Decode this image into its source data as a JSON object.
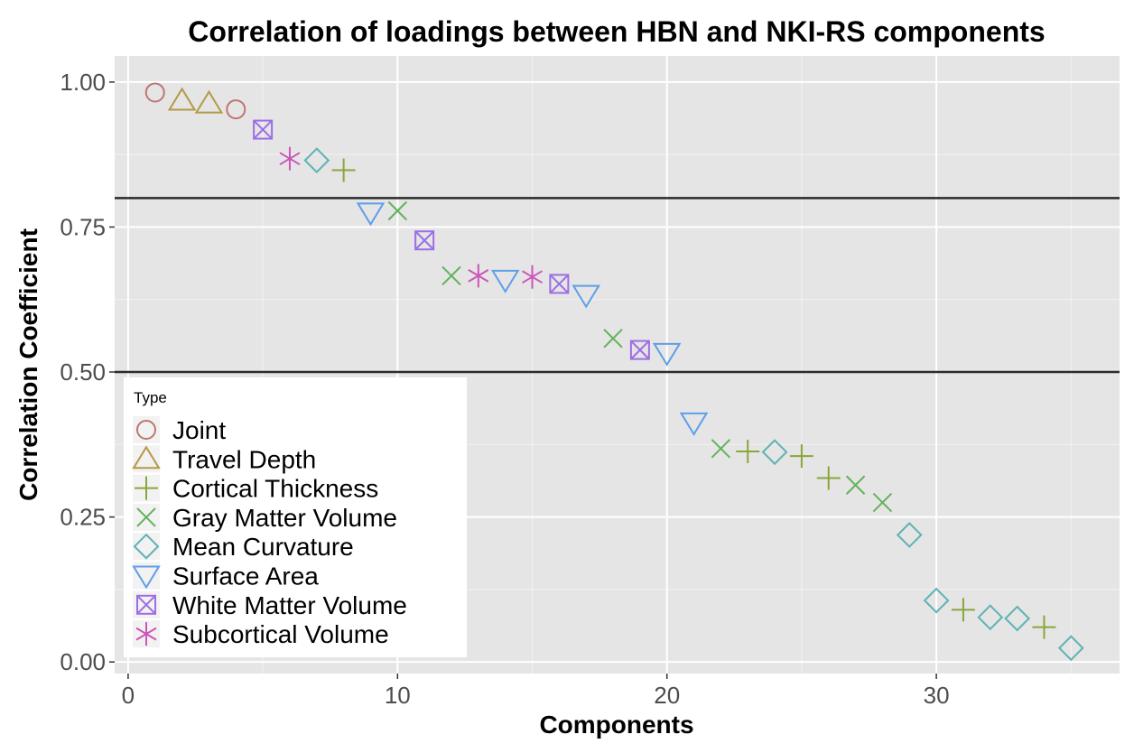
{
  "chart_data": {
    "type": "scatter",
    "title": "Correlation of loadings between HBN and NKI-RS components",
    "xlabel": "Components",
    "ylabel": "Correlation Coefficient",
    "xlim": [
      -0.5,
      36.8
    ],
    "ylim": [
      -0.02,
      1.045
    ],
    "x_ticks": [
      0,
      10,
      20,
      30
    ],
    "x_tick_labels": [
      "0",
      "10",
      "20",
      "30"
    ],
    "y_ticks": [
      0.0,
      0.25,
      0.5,
      0.75,
      1.0
    ],
    "y_tick_labels": [
      "0.00",
      "0.25",
      "0.50",
      "0.75",
      "1.00"
    ],
    "grid": true,
    "reference_lines": [
      0.8,
      0.5
    ],
    "legend": {
      "title": "Type",
      "position": "bottom-left",
      "entries": [
        {
          "label": "Joint",
          "shape": "circle",
          "color": "#c07672"
        },
        {
          "label": "Travel Depth",
          "shape": "triangle",
          "color": "#b39a45"
        },
        {
          "label": "Cortical Thickness",
          "shape": "plus",
          "color": "#8aa53c"
        },
        {
          "label": "Gray Matter Volume",
          "shape": "cross",
          "color": "#63b25e"
        },
        {
          "label": "Mean Curvature",
          "shape": "diamond",
          "color": "#5fb2b3"
        },
        {
          "label": "Surface Area",
          "shape": "triangle-down",
          "color": "#5f9ee9"
        },
        {
          "label": "White Matter Volume",
          "shape": "square-cross",
          "color": "#9c6ee5"
        },
        {
          "label": "Subcortical Volume",
          "shape": "asterisk",
          "color": "#cc55b9"
        }
      ]
    },
    "points": [
      {
        "x": 1,
        "y": 0.982,
        "type": "Joint"
      },
      {
        "x": 2,
        "y": 0.968,
        "type": "Travel Depth"
      },
      {
        "x": 3,
        "y": 0.963,
        "type": "Travel Depth"
      },
      {
        "x": 4,
        "y": 0.953,
        "type": "Joint"
      },
      {
        "x": 5,
        "y": 0.918,
        "type": "White Matter Volume"
      },
      {
        "x": 6,
        "y": 0.868,
        "type": "Subcortical Volume"
      },
      {
        "x": 7,
        "y": 0.865,
        "type": "Mean Curvature"
      },
      {
        "x": 8,
        "y": 0.848,
        "type": "Cortical Thickness"
      },
      {
        "x": 9,
        "y": 0.775,
        "type": "Surface Area"
      },
      {
        "x": 10,
        "y": 0.778,
        "type": "Gray Matter Volume"
      },
      {
        "x": 11,
        "y": 0.727,
        "type": "White Matter Volume"
      },
      {
        "x": 12,
        "y": 0.666,
        "type": "Gray Matter Volume"
      },
      {
        "x": 13,
        "y": 0.666,
        "type": "Subcortical Volume"
      },
      {
        "x": 14,
        "y": 0.659,
        "type": "Surface Area"
      },
      {
        "x": 15,
        "y": 0.664,
        "type": "Subcortical Volume"
      },
      {
        "x": 16,
        "y": 0.652,
        "type": "White Matter Volume"
      },
      {
        "x": 17,
        "y": 0.633,
        "type": "Surface Area"
      },
      {
        "x": 18,
        "y": 0.558,
        "type": "Gray Matter Volume"
      },
      {
        "x": 19,
        "y": 0.538,
        "type": "White Matter Volume"
      },
      {
        "x": 20,
        "y": 0.533,
        "type": "Surface Area"
      },
      {
        "x": 21,
        "y": 0.413,
        "type": "Surface Area"
      },
      {
        "x": 22,
        "y": 0.368,
        "type": "Gray Matter Volume"
      },
      {
        "x": 23,
        "y": 0.363,
        "type": "Cortical Thickness"
      },
      {
        "x": 24,
        "y": 0.362,
        "type": "Mean Curvature"
      },
      {
        "x": 25,
        "y": 0.355,
        "type": "Cortical Thickness"
      },
      {
        "x": 26,
        "y": 0.317,
        "type": "Cortical Thickness"
      },
      {
        "x": 27,
        "y": 0.305,
        "type": "Gray Matter Volume"
      },
      {
        "x": 28,
        "y": 0.275,
        "type": "Gray Matter Volume"
      },
      {
        "x": 29,
        "y": 0.219,
        "type": "Mean Curvature"
      },
      {
        "x": 30,
        "y": 0.106,
        "type": "Mean Curvature"
      },
      {
        "x": 31,
        "y": 0.09,
        "type": "Cortical Thickness"
      },
      {
        "x": 32,
        "y": 0.077,
        "type": "Mean Curvature"
      },
      {
        "x": 33,
        "y": 0.075,
        "type": "Mean Curvature"
      },
      {
        "x": 34,
        "y": 0.06,
        "type": "Cortical Thickness"
      },
      {
        "x": 35,
        "y": 0.024,
        "type": "Mean Curvature"
      }
    ]
  }
}
